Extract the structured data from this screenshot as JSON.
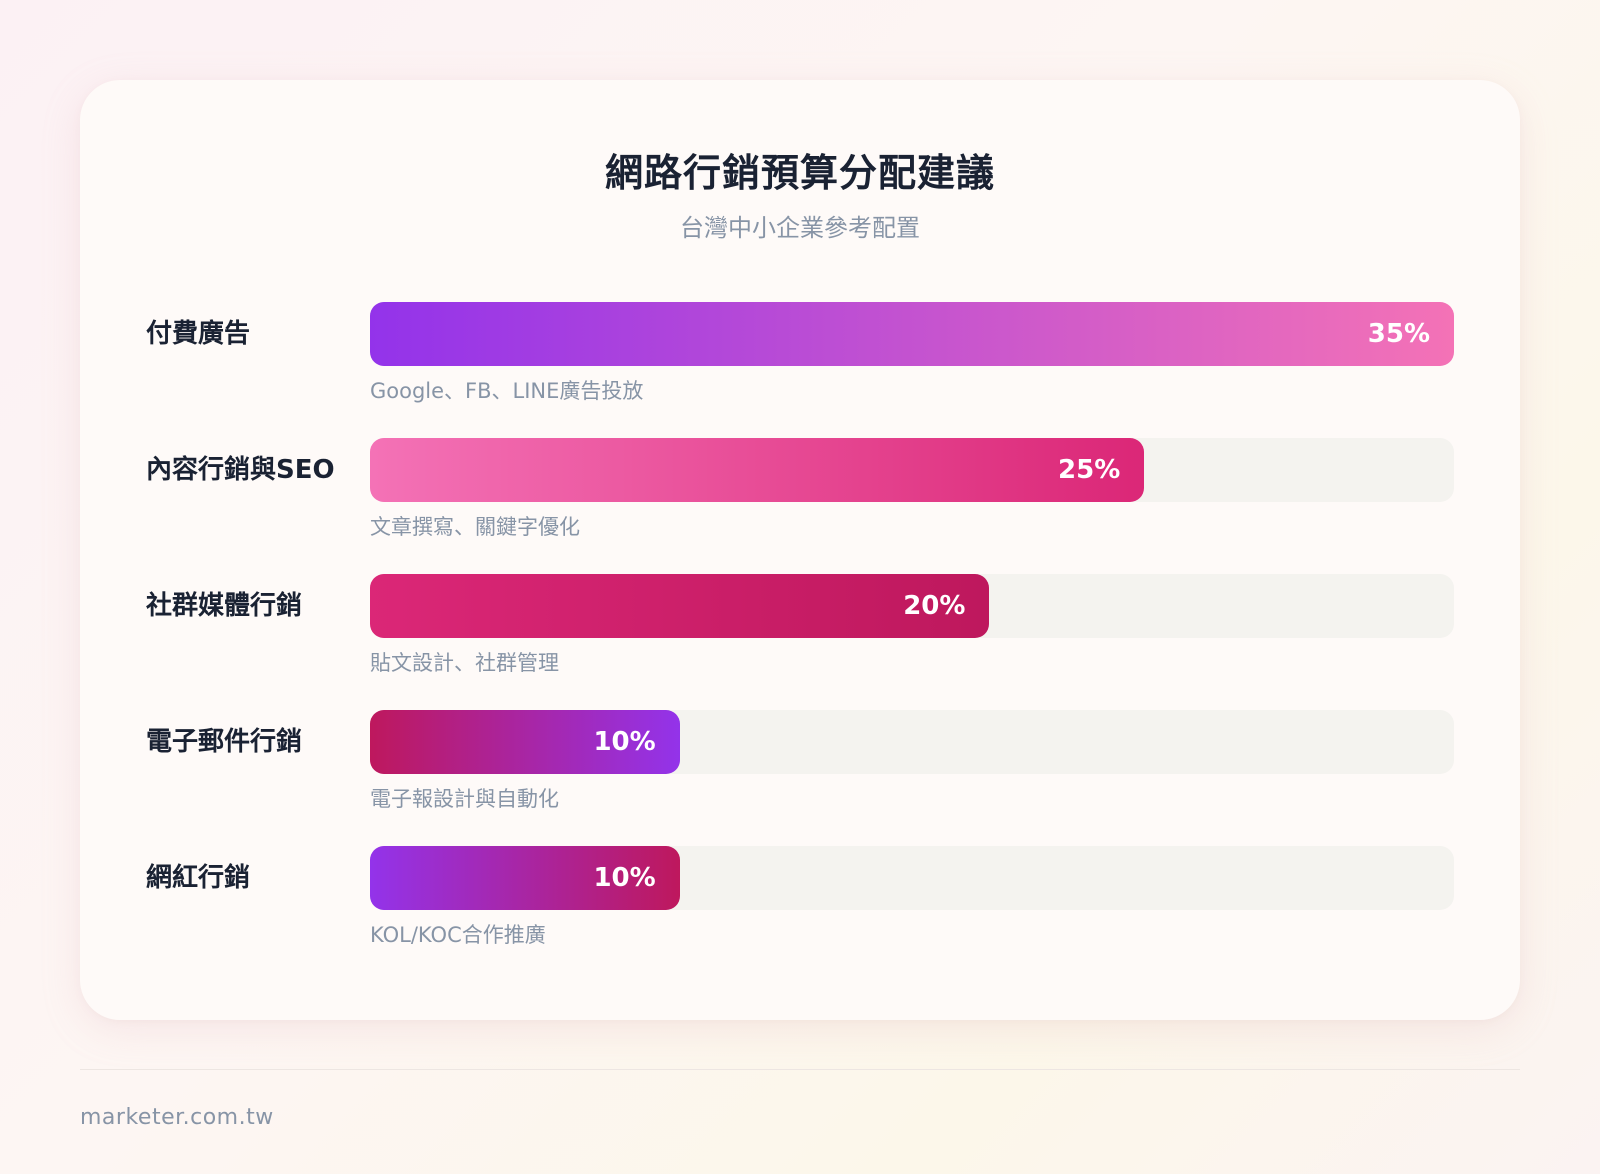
{
  "chart_data": {
    "type": "bar",
    "orientation": "horizontal",
    "title": "網路行銷預算分配建議",
    "subtitle": "台灣中小企業參考配置",
    "unit": "%",
    "xlim": [
      0,
      35
    ],
    "categories": [
      "付費廣告",
      "內容行銷與SEO",
      "社群媒體行銷",
      "電子郵件行銷",
      "網紅行銷"
    ],
    "values": [
      35,
      25,
      20,
      10,
      10
    ],
    "value_labels": [
      "35%",
      "25%",
      "20%",
      "10%",
      "10%"
    ],
    "descriptions": [
      "Google、FB、LINE廣告投放",
      "文章撰寫、關鍵字優化",
      "貼文設計、社群管理",
      "電子報設計與自動化",
      "KOL/KOC合作推廣"
    ],
    "bar_gradients": [
      [
        "#9333ea",
        "#f472b6"
      ],
      [
        "#f472b6",
        "#db2777"
      ],
      [
        "#db2777",
        "#be185d"
      ],
      [
        "#be185d",
        "#9333ea"
      ],
      [
        "#9333ea",
        "#be185d"
      ]
    ],
    "grid": false,
    "legend": "none"
  },
  "colors": {
    "track": "#f4f3ef",
    "title": "#1a2233",
    "muted": "#8794a6"
  },
  "footer": {
    "text": "marketer.com.tw"
  }
}
